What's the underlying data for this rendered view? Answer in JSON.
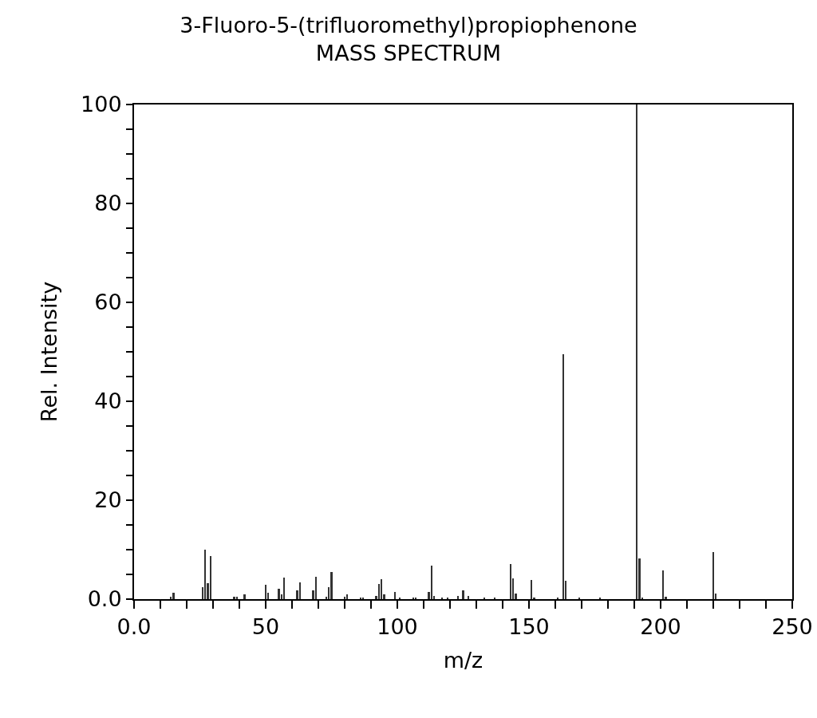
{
  "chart_data": {
    "type": "bar",
    "title": "3-Fluoro-5-(trifluoromethyl)propiophenone",
    "subtitle": "MASS SPECTRUM",
    "xlabel": "m/z",
    "ylabel": "Rel. Intensity",
    "x": [
      14,
      15,
      26,
      27,
      28,
      29,
      38,
      39,
      42,
      50,
      51,
      55,
      56,
      57,
      62,
      63,
      68,
      69,
      73,
      74,
      75,
      80,
      81,
      86,
      87,
      92,
      93,
      94,
      95,
      99,
      101,
      106,
      107,
      112,
      113,
      114,
      117,
      119,
      123,
      125,
      127,
      133,
      137,
      143,
      144,
      145,
      151,
      152,
      161,
      163,
      164,
      169,
      177,
      191,
      192,
      193,
      201,
      202,
      220,
      221
    ],
    "values": [
      0.5,
      1.3,
      2.5,
      10.0,
      3.2,
      8.7,
      0.5,
      0.5,
      1.0,
      2.9,
      1.3,
      2.1,
      0.9,
      4.3,
      1.7,
      3.4,
      1.8,
      4.5,
      0.5,
      2.4,
      5.5,
      0.5,
      1.0,
      0.4,
      0.4,
      0.7,
      3.0,
      4.0,
      1.0,
      1.5,
      0.4,
      0.3,
      0.3,
      1.5,
      6.8,
      0.7,
      0.3,
      0.3,
      0.7,
      1.8,
      0.7,
      0.3,
      0.3,
      7.1,
      4.2,
      1.2,
      3.8,
      0.4,
      0.3,
      49.5,
      3.7,
      0.3,
      0.3,
      100,
      8.3,
      0.3,
      5.8,
      0.5,
      9.5,
      1.1
    ],
    "color": "#333333",
    "xlim": [
      0,
      250
    ],
    "xticks": [
      {
        "value": 0,
        "label": "0.0"
      },
      {
        "value": 10,
        "label": null
      },
      {
        "value": 20,
        "label": null
      },
      {
        "value": 30,
        "label": null
      },
      {
        "value": 40,
        "label": null
      },
      50,
      {
        "value": 60,
        "label": null
      },
      {
        "value": 70,
        "label": null
      },
      {
        "value": 80,
        "label": null
      },
      {
        "value": 90,
        "label": null
      },
      100,
      {
        "value": 110,
        "label": null
      },
      {
        "value": 120,
        "label": null
      },
      {
        "value": 130,
        "label": null
      },
      {
        "value": 140,
        "label": null
      },
      150,
      {
        "value": 160,
        "label": null
      },
      {
        "value": 170,
        "label": null
      },
      {
        "value": 180,
        "label": null
      },
      {
        "value": 190,
        "label": null
      },
      200,
      {
        "value": 210,
        "label": null
      },
      {
        "value": 220,
        "label": null
      },
      {
        "value": 230,
        "label": null
      },
      {
        "value": 240,
        "label": null
      },
      250
    ],
    "ylim": [
      0,
      100
    ],
    "yticks": [
      {
        "value": 0,
        "label": "0.0"
      },
      {
        "value": 5,
        "label": null
      },
      {
        "value": 10,
        "label": null
      },
      {
        "value": 15,
        "label": null
      },
      20,
      {
        "value": 25,
        "label": null
      },
      {
        "value": 30,
        "label": null
      },
      {
        "value": 35,
        "label": null
      },
      40,
      {
        "value": 45,
        "label": null
      },
      {
        "value": 50,
        "label": null
      },
      {
        "value": 55,
        "label": null
      },
      60,
      {
        "value": 65,
        "label": null
      },
      {
        "value": 70,
        "label": null
      },
      {
        "value": 75,
        "label": null
      },
      80,
      {
        "value": 85,
        "label": null
      },
      {
        "value": 90,
        "label": null
      },
      {
        "value": 95,
        "label": null
      },
      100
    ],
    "grid": false
  }
}
